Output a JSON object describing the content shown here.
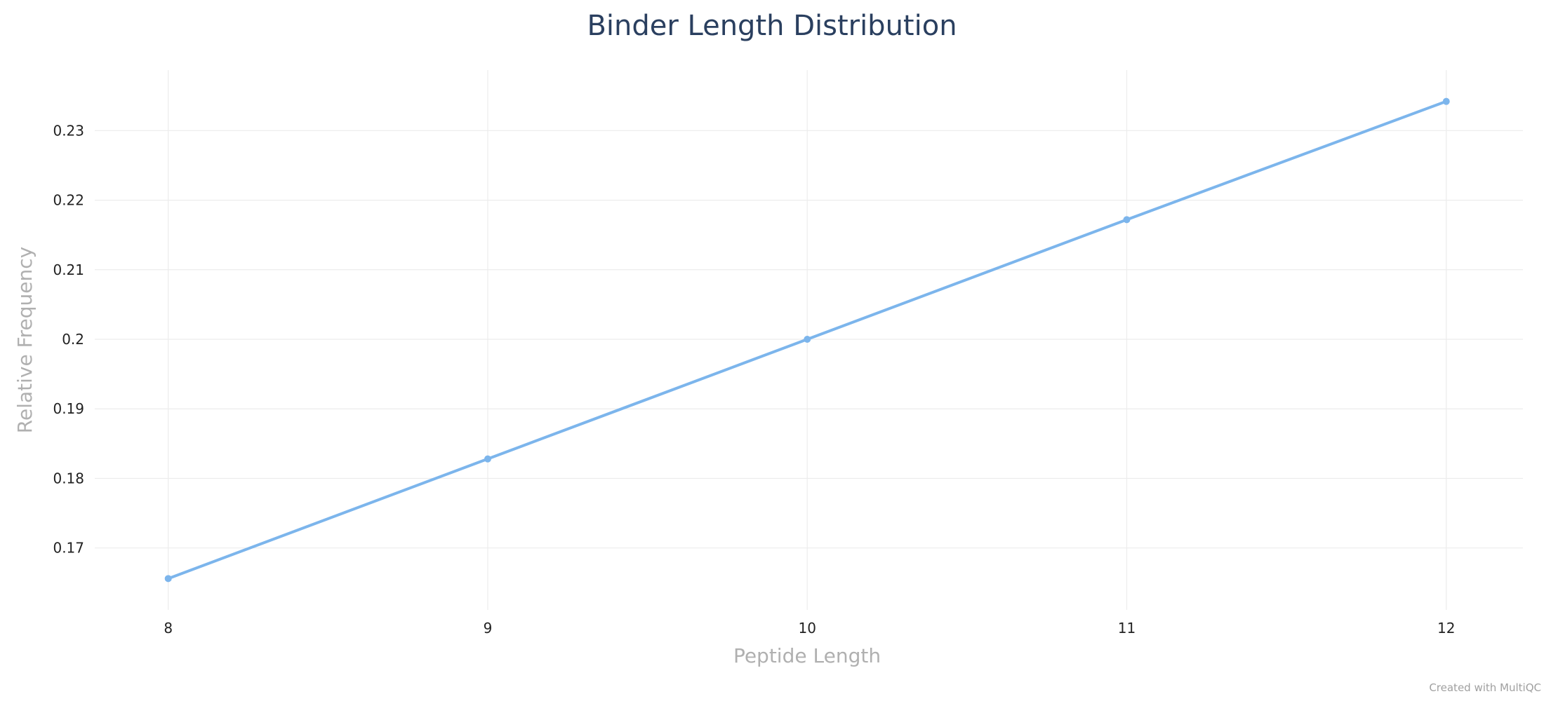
{
  "chart_data": {
    "type": "line",
    "title": "Binder Length Distribution",
    "xlabel": "Peptide Length",
    "ylabel": "Relative Frequency",
    "x": [
      8,
      9,
      10,
      11,
      12
    ],
    "series": [
      {
        "values": [
          0.1656,
          0.1828,
          0.2,
          0.2172,
          0.2342
        ],
        "color": "#7cb5ec"
      }
    ],
    "xlim": [
      7.77,
      12.24
    ],
    "ylim": [
      0.1611,
      0.2387
    ],
    "x_ticks": [
      8,
      9,
      10,
      11,
      12
    ],
    "x_tick_labels": [
      "8",
      "9",
      "10",
      "11",
      "12"
    ],
    "y_ticks": [
      0.17,
      0.18,
      0.19,
      0.2,
      0.21,
      0.22,
      0.23
    ],
    "y_tick_labels": [
      "0.17",
      "0.18",
      "0.19",
      "0.2",
      "0.21",
      "0.22",
      "0.23"
    ],
    "grid": true,
    "markers": true
  },
  "footer": {
    "credit": "Created with MultiQC"
  }
}
